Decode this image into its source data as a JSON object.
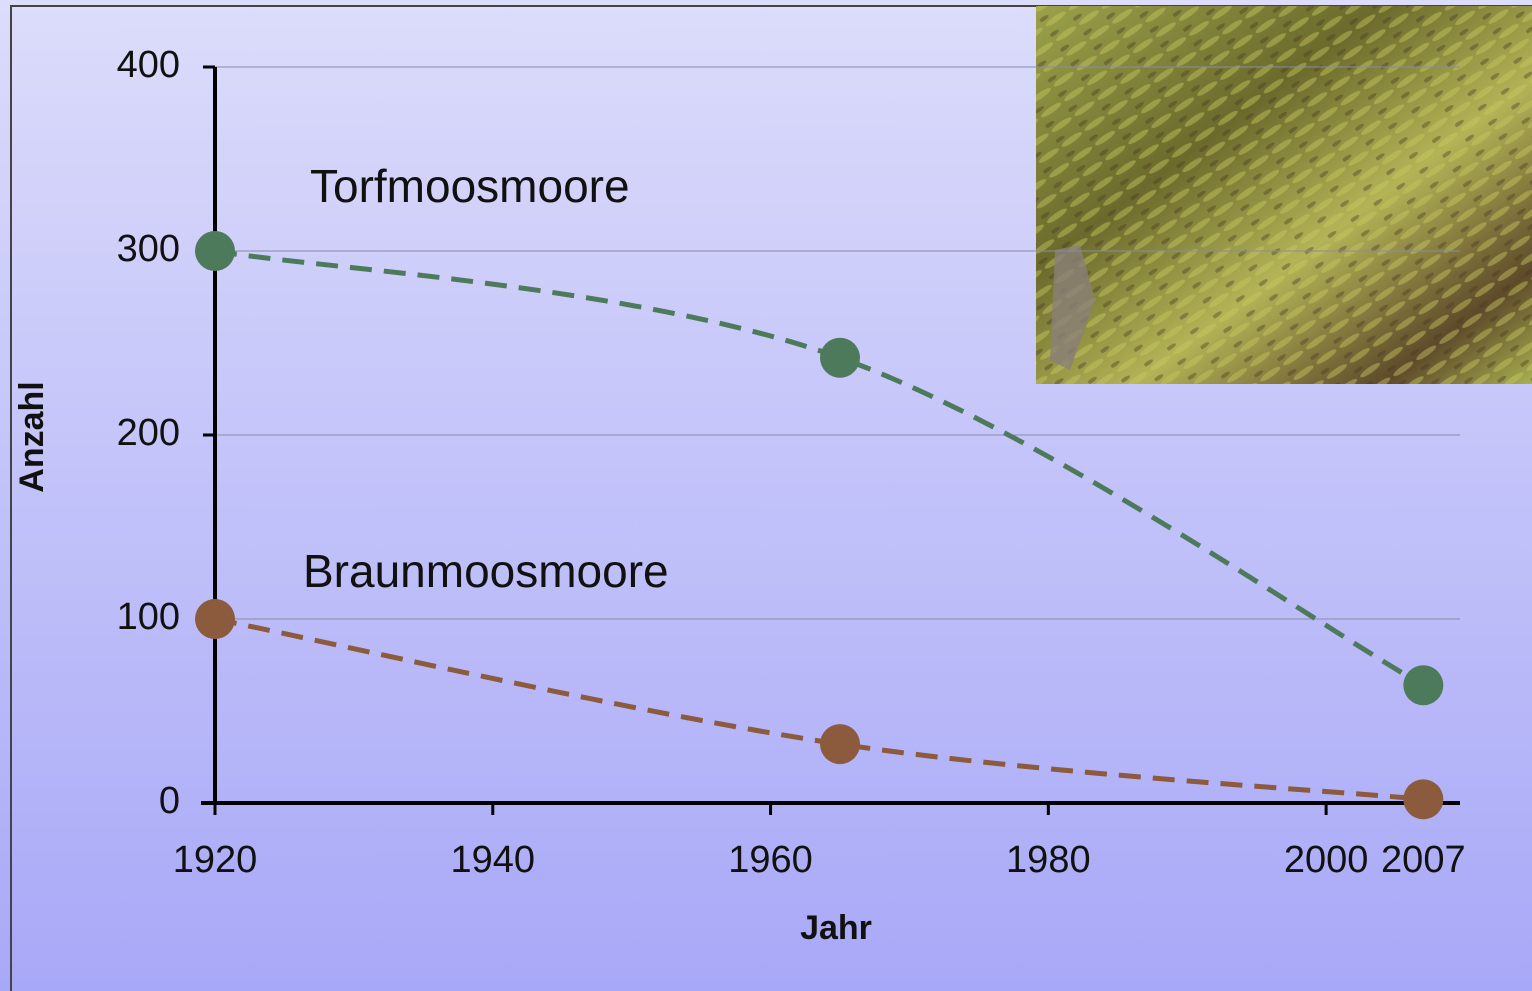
{
  "chart_data": {
    "type": "line",
    "x": [
      1920,
      1965,
      2007
    ],
    "series": [
      {
        "name": "Torfmoosmoore",
        "color": "#4e7a5c",
        "values": [
          300,
          242,
          64
        ]
      },
      {
        "name": "Braunmoosmoore",
        "color": "#8c5a3c",
        "values": [
          100,
          32,
          2
        ]
      }
    ],
    "x_label": "Jahr",
    "y_label": "Anzahl",
    "xlim": [
      1920,
      2010
    ],
    "xticks": [
      1920,
      1940,
      1960,
      1980,
      2000,
      2007
    ],
    "ylim": [
      0,
      400
    ],
    "yticks": [
      0,
      100,
      200,
      300,
      400
    ],
    "grid": true
  }
}
